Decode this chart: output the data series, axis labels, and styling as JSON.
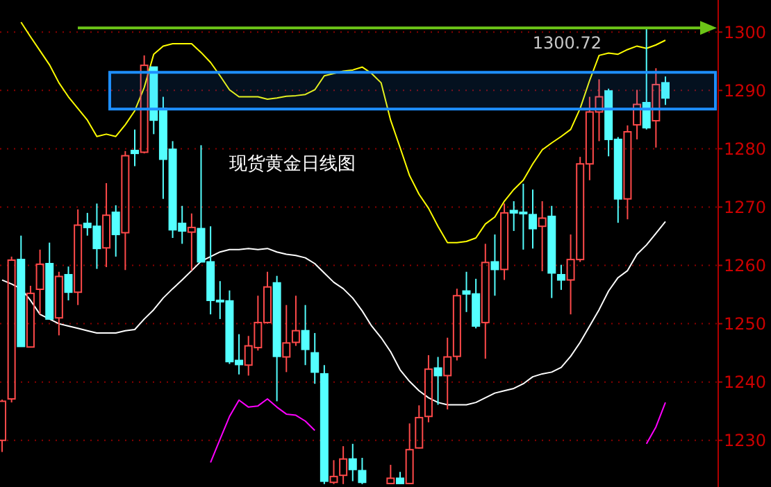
{
  "chart_data": {
    "type": "candlestick",
    "title": "现货黄金日线图",
    "categories": [
      null,
      null,
      null,
      null,
      null,
      null,
      null,
      null,
      null,
      null,
      null,
      null,
      null,
      null,
      null,
      null,
      null,
      null,
      null,
      null,
      null,
      null,
      null,
      null,
      null,
      null,
      null,
      null,
      null,
      null,
      null,
      null,
      null,
      null,
      null,
      null,
      null,
      null,
      null,
      null,
      null,
      null,
      null,
      null,
      null,
      null,
      null,
      null,
      null,
      null,
      null,
      null,
      null,
      null,
      null,
      null,
      null,
      null,
      null,
      null,
      null,
      null,
      null,
      null,
      null,
      null,
      null,
      null,
      null,
      null,
      null
    ],
    "ohlc": [
      [
        1230,
        1237,
        1228,
        1236.7
      ],
      [
        1237.1,
        1261.5,
        1236.5,
        1260.9
      ],
      [
        1261,
        1265.1,
        1246.1,
        1246.1
      ],
      [
        1246,
        1256.5,
        1246,
        1255.2
      ],
      [
        1255.9,
        1262.7,
        1251.6,
        1260.2
      ],
      [
        1260.3,
        1263.9,
        1250.8,
        1250.8
      ],
      [
        1251,
        1258.9,
        1248,
        1258.1
      ],
      [
        1258.4,
        1259.8,
        1254,
        1255.4
      ],
      [
        1255.4,
        1269.6,
        1253.2,
        1266.9
      ],
      [
        1267.2,
        1269,
        1265.1,
        1266.5
      ],
      [
        1266.7,
        1270.6,
        1259.4,
        1262.9
      ],
      [
        1263,
        1274.1,
        1259.7,
        1268.6
      ],
      [
        1269.1,
        1270.3,
        1261.5,
        1265.3
      ],
      [
        1265.6,
        1279.6,
        1259.2,
        1278.8
      ],
      [
        1279.7,
        1283.3,
        1277,
        1279.2
      ],
      [
        1279.4,
        1296,
        1279.2,
        1294.3
      ],
      [
        1294,
        1294,
        1282.5,
        1284.9
      ],
      [
        1286.9,
        1288.9,
        1271.4,
        1278.2
      ],
      [
        1279.9,
        1281.3,
        1264.7,
        1266.1
      ],
      [
        1267.2,
        1270.2,
        1263.7,
        1265.9
      ],
      [
        1265.7,
        1268.9,
        1259.1,
        1266.5
      ],
      [
        1266.3,
        1280.6,
        1260.6,
        1260.6
      ],
      [
        1260.6,
        1266.7,
        1251.6,
        1254
      ],
      [
        1254,
        1257.3,
        1250.8,
        1253.8
      ],
      [
        1253.9,
        1255.7,
        1243.1,
        1243.5
      ],
      [
        1243.7,
        1248.2,
        1241.3,
        1243
      ],
      [
        1242.9,
        1247.9,
        1241.1,
        1246.2
      ],
      [
        1245.9,
        1254.8,
        1245.4,
        1250.2
      ],
      [
        1250.2,
        1258.9,
        1250,
        1256.3
      ],
      [
        1257,
        1258.2,
        1236.7,
        1244.4
      ],
      [
        1244.3,
        1253.2,
        1241.7,
        1246.7
      ],
      [
        1246.8,
        1254.8,
        1246.2,
        1248.8
      ],
      [
        1248.8,
        1253.2,
        1242.9,
        1245.6
      ],
      [
        1245,
        1248.4,
        1239.7,
        1241.7
      ],
      [
        1241.4,
        1242.9,
        1222.5,
        1223
      ],
      [
        1222.8,
        1226.6,
        1222.5,
        1223.8
      ],
      [
        1224,
        1229,
        1222.5,
        1226.8
      ],
      [
        1226.8,
        1229.4,
        1223,
        1225
      ],
      [
        1224.8,
        1227,
        1222.5,
        1222.8
      ],
      null,
      null,
      [
        1222.6,
        1225.8,
        1222.5,
        1223.5
      ],
      [
        1223.5,
        1224.6,
        1222.5,
        1222.6
      ],
      [
        1222.6,
        1232.9,
        1222.5,
        1228.4
      ],
      [
        1228.7,
        1236,
        1228.6,
        1233.9
      ],
      [
        1234.1,
        1244.6,
        1233.1,
        1242.2
      ],
      [
        1242.4,
        1244.3,
        1236.1,
        1241.1
      ],
      [
        1241.1,
        1247.6,
        1235.3,
        1244.3
      ],
      [
        1244.4,
        1256,
        1243.7,
        1254.8
      ],
      [
        1255.6,
        1258.9,
        1252,
        1255.1
      ],
      [
        1255.1,
        1257.7,
        1249.2,
        1249.6
      ],
      [
        1250.2,
        1263.7,
        1244,
        1260.5
      ],
      [
        1260.6,
        1265.3,
        1254.8,
        1259.3
      ],
      [
        1259.3,
        1270.6,
        1257.5,
        1269
      ],
      [
        1269.4,
        1271,
        1265.9,
        1269
      ],
      [
        1269.1,
        1274,
        1262.7,
        1268.9
      ],
      [
        1268.7,
        1273,
        1262.9,
        1266.3
      ],
      [
        1266.7,
        1271,
        1259,
        1268.1
      ],
      [
        1268.4,
        1270.2,
        1254.4,
        1258.7
      ],
      [
        1258.4,
        1260.1,
        1255.8,
        1257.5
      ],
      [
        1257.5,
        1265.3,
        1251.6,
        1261
      ],
      [
        1261,
        1278.6,
        1260.6,
        1277.4
      ],
      [
        1277.4,
        1288.9,
        1274.6,
        1286.3
      ],
      [
        1286.3,
        1291.9,
        1281.3,
        1288.9
      ],
      [
        1289.9,
        1290.3,
        1278.7,
        1281.6
      ],
      [
        1281.6,
        1282,
        1267.3,
        1271.4
      ],
      [
        1271.4,
        1284,
        1267.9,
        1282.9
      ],
      [
        1284.1,
        1290.1,
        1281.6,
        1287.6
      ],
      [
        1287.9,
        1300.72,
        1283.3,
        1283.6
      ],
      [
        1284.8,
        1293.8,
        1280.2,
        1291
      ],
      [
        1291.3,
        1292.4,
        1287.5,
        1288.7
      ]
    ],
    "series": [
      {
        "type": "line",
        "color": "#ffff00",
        "values": [
          null,
          null,
          1301.7,
          1299.2,
          1296.8,
          1294.4,
          1291.3,
          1288.9,
          1286.9,
          1284.9,
          1282.1,
          1282.5,
          1282.1,
          1284.1,
          1286.5,
          1290.5,
          1296.2,
          1297.6,
          1298,
          1298,
          1298,
          1296.5,
          1294.8,
          1292.5,
          1290.1,
          1288.9,
          1288.9,
          1288.9,
          1288.5,
          1288.7,
          1289,
          1289.1,
          1289.3,
          1290.1,
          1292.5,
          1292.9,
          1293.3,
          1293.5,
          1294,
          1292.9,
          1291.3,
          1284.9,
          1280.2,
          1275.4,
          1272.2,
          1269.8,
          1266.7,
          1263.9,
          1263.9,
          1264.1,
          1264.7,
          1267.1,
          1268.3,
          1271,
          1273,
          1274.6,
          1277.4,
          1279.8,
          1281,
          1282.1,
          1283.3,
          1286.9,
          1291.7,
          1296,
          1296.4,
          1296.2,
          1297,
          1297.6,
          1297.2,
          1297.8,
          1298.6
        ]
      },
      {
        "type": "line",
        "color": "#ffffff",
        "values": [
          1257.5,
          1256.8,
          1256,
          1254,
          1251.6,
          1250.8,
          1250,
          1249.6,
          1249.2,
          1248.8,
          1248.4,
          1248.4,
          1248.4,
          1248.8,
          1249,
          1250.8,
          1252.4,
          1254.4,
          1256,
          1257.5,
          1259.1,
          1260.7,
          1261.5,
          1262.3,
          1262.7,
          1262.7,
          1262.9,
          1262.7,
          1262.9,
          1262.3,
          1261.9,
          1261.7,
          1261.3,
          1260.3,
          1258.7,
          1257.1,
          1256,
          1254.4,
          1252.2,
          1249.6,
          1247.6,
          1245.2,
          1242.1,
          1240.1,
          1238.5,
          1237.3,
          1236.5,
          1236.1,
          1236.1,
          1236.1,
          1236.5,
          1237.3,
          1238.1,
          1238.5,
          1238.9,
          1239.7,
          1240.9,
          1241.4,
          1241.7,
          1242.5,
          1244.4,
          1246.8,
          1249.6,
          1252.4,
          1255.6,
          1257.9,
          1259.1,
          1261.9,
          1263.5,
          1265.5,
          1267.5
        ]
      },
      {
        "type": "line",
        "color": "#ff00ff",
        "values": [
          null,
          null,
          null,
          null,
          null,
          null,
          null,
          null,
          null,
          null,
          null,
          null,
          null,
          null,
          null,
          null,
          null,
          null,
          null,
          null,
          null,
          null,
          1226.2,
          1230.2,
          1234.1,
          1236.9,
          1235.7,
          1235.9,
          1237.1,
          1235.7,
          1234.5,
          1234.3,
          1233.3,
          1231.7,
          null,
          null,
          null,
          null,
          null,
          null,
          null,
          null,
          null,
          null,
          null,
          null,
          null,
          null,
          null,
          null,
          null,
          null,
          null,
          null,
          null,
          null,
          null,
          null,
          null,
          null,
          null,
          null,
          null,
          null,
          null,
          null,
          null,
          null,
          1229.4,
          1232.3,
          1236.5
        ]
      }
    ],
    "ylim": [
      1222,
      1305.5
    ],
    "yticks": [
      1230,
      1240,
      1250,
      1260,
      1270,
      1280,
      1290,
      1300
    ],
    "ref_lines": [
      {
        "axis": "y",
        "value": 1300.72,
        "label": "1300.72",
        "color": "#6cc417"
      }
    ],
    "bands": [
      {
        "axis": "y",
        "from": 1286.8,
        "to": 1293.1,
        "color": "#1e8fff"
      }
    ],
    "grid": "y",
    "tick_labels": "y",
    "line_style": "solid"
  }
}
